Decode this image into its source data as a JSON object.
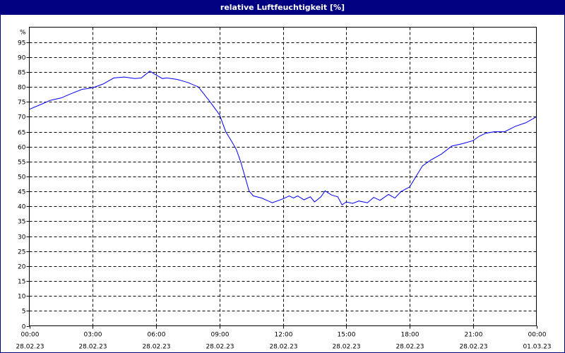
{
  "window": {
    "title": "relative Luftfeuchtigkeit [%]"
  },
  "chart_data": {
    "type": "line",
    "title": "relative Luftfeuchtigkeit [%]",
    "ylabel": "%",
    "xlabel": "",
    "ylim": [
      0,
      100
    ],
    "xlim_hours": [
      0,
      24
    ],
    "grid": true,
    "y_ticks": [
      "0",
      "5",
      "10",
      "15",
      "20",
      "25",
      "30",
      "35",
      "40",
      "45",
      "50",
      "55",
      "60",
      "65",
      "70",
      "75",
      "80",
      "85",
      "90",
      "95"
    ],
    "x_ticks": [
      {
        "time": "00:00",
        "date": "28.02.23"
      },
      {
        "time": "03:00",
        "date": "28.02.23"
      },
      {
        "time": "06:00",
        "date": "28.02.23"
      },
      {
        "time": "09:00",
        "date": "28.02.23"
      },
      {
        "time": "12:00",
        "date": "28.02.23"
      },
      {
        "time": "15:00",
        "date": "28.02.23"
      },
      {
        "time": "18:00",
        "date": "28.02.23"
      },
      {
        "time": "21:00",
        "date": "28.02.23"
      },
      {
        "time": "00:00",
        "date": "01.03.23"
      }
    ],
    "series": [
      {
        "color": "#0000ff",
        "x_hours": [
          0,
          0.5,
          1,
          1.5,
          2,
          2.5,
          3,
          3.5,
          4,
          4.5,
          5,
          5.3,
          5.7,
          6,
          6.3,
          6.5,
          7,
          7.5,
          8,
          8.5,
          9,
          9.3,
          9.6,
          9.8,
          10,
          10.2,
          10.4,
          10.6,
          11,
          11.5,
          12,
          12.3,
          12.5,
          12.7,
          13,
          13.3,
          13.5,
          13.8,
          14,
          14.3,
          14.6,
          14.8,
          15,
          15.3,
          15.6,
          16,
          16.3,
          16.6,
          17,
          17.3,
          17.6,
          18,
          18.3,
          18.6,
          19,
          19.5,
          20,
          20.5,
          21,
          21.3,
          21.6,
          22,
          22.5,
          23,
          23.5,
          24
        ],
        "y": [
          72.5,
          74,
          75.5,
          76.3,
          77.8,
          79.2,
          79.7,
          81,
          83,
          83.3,
          82.8,
          83,
          85.3,
          84,
          82.8,
          83,
          82.5,
          81.5,
          80,
          75.5,
          70.7,
          65,
          61.5,
          59,
          55,
          50.2,
          45.2,
          43.5,
          42.8,
          41.2,
          42.5,
          43.5,
          42.8,
          43.5,
          42.2,
          43.2,
          41.5,
          43.2,
          45.2,
          43.8,
          43.2,
          40.5,
          41.5,
          41,
          41.8,
          41.2,
          43,
          42,
          44,
          42.8,
          45,
          46.5,
          50,
          53.5,
          55.5,
          57.5,
          60.2,
          61,
          62,
          63.5,
          64.5,
          65,
          65,
          66.8,
          68,
          70
        ]
      }
    ]
  }
}
